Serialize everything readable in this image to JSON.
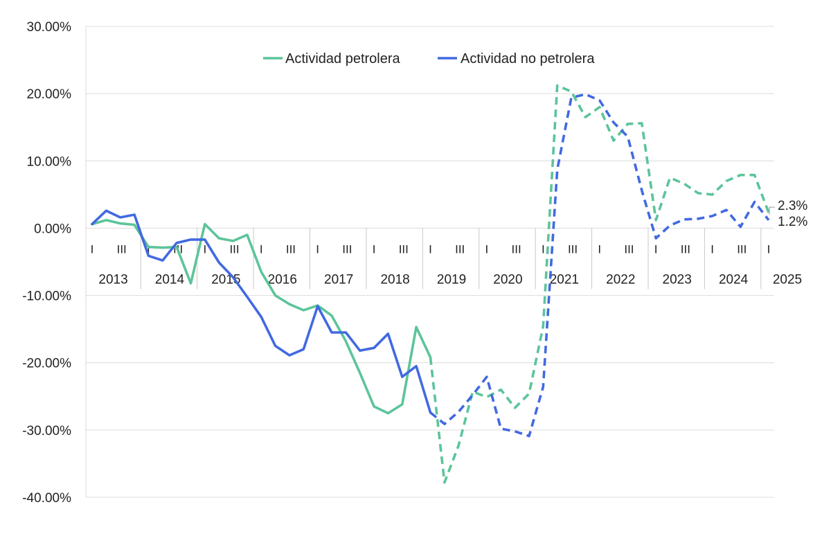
{
  "chart_data": {
    "type": "line",
    "title": "",
    "xlabel": "",
    "ylabel": "",
    "ylim": [
      -40,
      30
    ],
    "yticks": [
      30,
      20,
      10,
      0,
      -10,
      -20,
      -30,
      -40
    ],
    "ytick_labels": [
      "30.00%",
      "20.00%",
      "10.00%",
      "0.00%",
      "-10.00%",
      "-20.00%",
      "-30.00%",
      "-40.00%"
    ],
    "years": [
      "2013",
      "2014",
      "2015",
      "2016",
      "2017",
      "2018",
      "2019",
      "2020",
      "2021",
      "2022",
      "2023",
      "2024",
      "2025"
    ],
    "quarter_labels": [
      "I",
      "III"
    ],
    "n_quarters": 49,
    "grid": true,
    "legend_position": "top-center",
    "series": [
      {
        "name": "Actividad petrolera",
        "color": "#5cc49a",
        "dashed_from_index": 24,
        "values": [
          0.6,
          1.2,
          0.7,
          0.5,
          -2.8,
          -2.9,
          -2.8,
          -8.2,
          0.6,
          -1.5,
          -1.9,
          -1.0,
          -6.5,
          -10.0,
          -11.3,
          -12.2,
          -11.5,
          -13.0,
          -16.8,
          -21.5,
          -26.5,
          -27.5,
          -26.2,
          -14.7,
          -19.2,
          -37.8,
          -32.3,
          -24.3,
          -25.1,
          -24.0,
          -26.7,
          -24.6,
          -14.6,
          21.2,
          20.3,
          16.5,
          18.0,
          13.0,
          15.5,
          15.6,
          1.2,
          7.5,
          6.6,
          5.2,
          5.0,
          7.0,
          7.9,
          7.9,
          2.3
        ]
      },
      {
        "name": "Actividad no petrolera",
        "color": "#4169e1",
        "dashed_from_index": 24,
        "values": [
          0.6,
          2.6,
          1.6,
          2.0,
          -4.1,
          -4.8,
          -2.2,
          -1.7,
          -1.7,
          -5.1,
          -7.3,
          -10.2,
          -13.2,
          -17.5,
          -18.9,
          -18.0,
          -11.6,
          -15.5,
          -15.5,
          -18.2,
          -17.8,
          -15.7,
          -22.1,
          -20.5,
          -27.4,
          -29.1,
          -27.3,
          -24.8,
          -22.1,
          -29.8,
          -30.2,
          -30.9,
          -23.6,
          8.7,
          19.4,
          19.9,
          19.0,
          15.7,
          13.6,
          5.6,
          -1.5,
          0.4,
          1.3,
          1.4,
          1.8,
          2.7,
          0.2,
          3.9,
          1.2
        ]
      }
    ],
    "end_labels": [
      "2.3%",
      "1.2%"
    ]
  }
}
